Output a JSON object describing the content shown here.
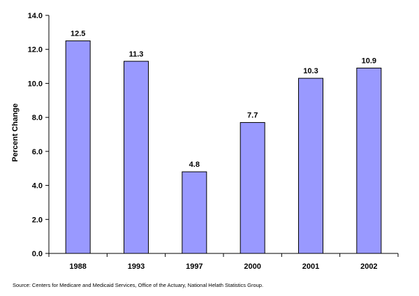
{
  "chart_data": {
    "type": "bar",
    "categories": [
      "1988",
      "1993",
      "1997",
      "2000",
      "2001",
      "2002"
    ],
    "values": [
      12.5,
      11.3,
      4.8,
      7.7,
      10.3,
      10.9
    ],
    "data_labels": [
      "12.5",
      "11.3",
      "4.8",
      "7.7",
      "10.3",
      "10.9"
    ],
    "title": "",
    "xlabel": "",
    "ylabel": "Percent Change",
    "ylim": [
      0,
      14
    ],
    "yticks": [
      0,
      2,
      4,
      6,
      8,
      10,
      12,
      14
    ],
    "ytick_labels": [
      "0.0",
      "2.0",
      "4.0",
      "6.0",
      "8.0",
      "10.0",
      "12.0",
      "14.0"
    ],
    "grid": false,
    "legend": "none",
    "bar_color": "#9999FF",
    "bar_edge_color": "#000000"
  },
  "source_note": "Source:  Centers for Medicare and Medicaid Services, Office of the Actuary, National Helath Statistics Group."
}
